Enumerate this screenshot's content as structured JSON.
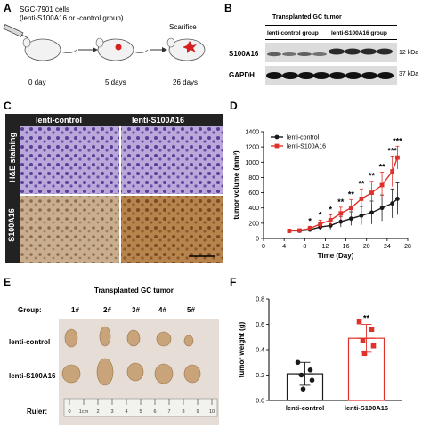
{
  "panels": {
    "a": {
      "label": "A",
      "injection_line1": "SGC-7901 cells",
      "injection_line2": "(lenti-S100A16 or -control group)",
      "scarifice": "Scarifice",
      "day0": "0 day",
      "day5": "5 days",
      "day26": "26 days"
    },
    "b": {
      "label": "B",
      "header": "Transplanted GC tumor",
      "col1": "lenti-control group",
      "col2": "lenti-S100A16 group",
      "row1": "S100A16",
      "row2": "GAPDH",
      "kda1": "12 kDa",
      "kda2": "37 kDa"
    },
    "c": {
      "label": "C",
      "col1": "lenti-control",
      "col2": "lenti-S100A16",
      "row1": "H&E staining",
      "row2": "S100A16"
    },
    "e": {
      "label": "E",
      "header": "Transplanted GC tumor",
      "group_label": "Group:",
      "groups": [
        "1#",
        "2#",
        "3#",
        "4#",
        "5#"
      ],
      "row1": "lenti-control",
      "row2": "lenti-S100A16",
      "ruler_label": "Ruler:",
      "ruler_ticks": [
        "0",
        "1cm",
        "2",
        "3",
        "4",
        "5",
        "6",
        "7",
        "8",
        "9",
        "10"
      ]
    },
    "colors": {
      "control": "#1a1a1a",
      "s100a16": "#e0302a",
      "he_stain": "#6a4fa8",
      "ihc_stain": "#a87a4a"
    }
  },
  "chart_data": [
    {
      "panel": "D",
      "type": "line",
      "xlabel": "Time (Day)",
      "ylabel": "tumor volume (mm³)",
      "xlim": [
        0,
        28
      ],
      "ylim": [
        0,
        1400
      ],
      "xticks": [
        "0",
        "4",
        "8",
        "12",
        "16",
        "20",
        "24",
        "28"
      ],
      "yticks": [
        "0",
        "200",
        "400",
        "600",
        "800",
        "1000",
        "1200",
        "1400"
      ],
      "legend_position": "top-left",
      "series": [
        {
          "name": "lenti-control",
          "color": "#1a1a1a",
          "x": [
            5,
            7,
            9,
            11,
            13,
            15,
            17,
            19,
            21,
            23,
            25,
            26
          ],
          "y": [
            100,
            100,
            115,
            150,
            170,
            220,
            260,
            300,
            340,
            400,
            460,
            520
          ],
          "err": [
            20,
            20,
            25,
            45,
            50,
            70,
            90,
            120,
            150,
            170,
            190,
            210
          ]
        },
        {
          "name": "lenti-S100A16",
          "color": "#e0302a",
          "x": [
            5,
            7,
            9,
            11,
            13,
            15,
            17,
            19,
            21,
            23,
            25,
            26
          ],
          "y": [
            100,
            105,
            130,
            190,
            240,
            330,
            400,
            520,
            600,
            700,
            880,
            1060
          ],
          "err": [
            20,
            20,
            30,
            50,
            70,
            80,
            110,
            130,
            150,
            170,
            200,
            150
          ]
        }
      ],
      "annotations": [
        {
          "x": 9,
          "text": "*"
        },
        {
          "x": 11,
          "text": "*"
        },
        {
          "x": 13,
          "text": "*"
        },
        {
          "x": 15,
          "text": "**"
        },
        {
          "x": 17,
          "text": "**"
        },
        {
          "x": 19,
          "text": "**"
        },
        {
          "x": 21,
          "text": "**"
        },
        {
          "x": 23,
          "text": "**"
        },
        {
          "x": 25,
          "text": "***"
        },
        {
          "x": 26,
          "text": "***"
        }
      ]
    },
    {
      "panel": "F",
      "type": "bar",
      "ylabel": "tumor weight (g)",
      "ylim": [
        0,
        0.8
      ],
      "yticks": [
        "0.0",
        "0.2",
        "0.4",
        "0.6",
        "0.8"
      ],
      "categories": [
        "lenti-control",
        "lenti-S100A16"
      ],
      "values": [
        0.21,
        0.49
      ],
      "errors": [
        0.09,
        0.11
      ],
      "colors": [
        "#1a1a1a",
        "#e0302a"
      ],
      "points": [
        [
          0.3,
          0.24,
          0.2,
          0.16,
          0.09
        ],
        [
          0.62,
          0.56,
          0.47,
          0.43,
          0.37
        ]
      ],
      "significance": "**"
    }
  ]
}
